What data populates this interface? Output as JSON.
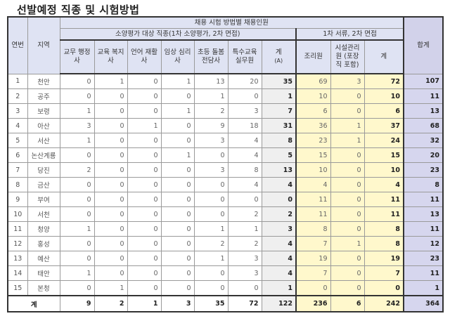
{
  "title": "선발예정 직종 및 시험방법",
  "header": {
    "seq": "연번",
    "region": "지역",
    "top_group": "채용 시험 방법별 채용인원",
    "group_a": "소양평가 대상 직종(1차 소양평가, 2차 면접)",
    "group_b": "1차 서류, 2차 면접",
    "total": "합계",
    "cols_a": [
      "교무 행정사",
      "교육 복지사",
      "언어 재활사",
      "임상 심리사",
      "초등 돌봄 전담사",
      "특수교육 실무원"
    ],
    "sum_a": "계",
    "sum_a_sub": "(A)",
    "cols_b": [
      "조리원",
      "시설관리원 (포장직 포함)"
    ],
    "sum_b": "계"
  },
  "rows": [
    {
      "no": "1",
      "region": "천안",
      "a": [
        "0",
        "1",
        "0",
        "1",
        "13",
        "20"
      ],
      "sum_a": "35",
      "b": [
        "69",
        "3"
      ],
      "sum_b": "72",
      "total": "107"
    },
    {
      "no": "2",
      "region": "공주",
      "a": [
        "0",
        "0",
        "0",
        "0",
        "1",
        "0"
      ],
      "sum_a": "1",
      "b": [
        "10",
        "0"
      ],
      "sum_b": "10",
      "total": "11"
    },
    {
      "no": "3",
      "region": "보령",
      "a": [
        "1",
        "0",
        "0",
        "1",
        "2",
        "3"
      ],
      "sum_a": "7",
      "b": [
        "6",
        "0"
      ],
      "sum_b": "6",
      "total": "13"
    },
    {
      "no": "4",
      "region": "아산",
      "a": [
        "3",
        "0",
        "1",
        "0",
        "9",
        "18"
      ],
      "sum_a": "31",
      "b": [
        "36",
        "1"
      ],
      "sum_b": "37",
      "total": "68"
    },
    {
      "no": "5",
      "region": "서산",
      "a": [
        "1",
        "0",
        "0",
        "0",
        "3",
        "4"
      ],
      "sum_a": "8",
      "b": [
        "23",
        "1"
      ],
      "sum_b": "24",
      "total": "32"
    },
    {
      "no": "6",
      "region": "논산계룡",
      "a": [
        "0",
        "0",
        "0",
        "1",
        "0",
        "4"
      ],
      "sum_a": "5",
      "b": [
        "15",
        "0"
      ],
      "sum_b": "15",
      "total": "20"
    },
    {
      "no": "7",
      "region": "당진",
      "a": [
        "2",
        "0",
        "0",
        "0",
        "3",
        "8"
      ],
      "sum_a": "13",
      "b": [
        "10",
        "0"
      ],
      "sum_b": "10",
      "total": "23"
    },
    {
      "no": "8",
      "region": "금산",
      "a": [
        "0",
        "0",
        "0",
        "0",
        "0",
        "4"
      ],
      "sum_a": "4",
      "b": [
        "4",
        "0"
      ],
      "sum_b": "4",
      "total": "8"
    },
    {
      "no": "9",
      "region": "부여",
      "a": [
        "0",
        "0",
        "0",
        "0",
        "0",
        "0"
      ],
      "sum_a": "0",
      "b": [
        "11",
        "0"
      ],
      "sum_b": "11",
      "total": "11"
    },
    {
      "no": "10",
      "region": "서천",
      "a": [
        "0",
        "0",
        "0",
        "0",
        "0",
        "2"
      ],
      "sum_a": "2",
      "b": [
        "11",
        "0"
      ],
      "sum_b": "11",
      "total": "13"
    },
    {
      "no": "11",
      "region": "청양",
      "a": [
        "1",
        "0",
        "0",
        "0",
        "1",
        "1"
      ],
      "sum_a": "3",
      "b": [
        "8",
        "0"
      ],
      "sum_b": "8",
      "total": "11"
    },
    {
      "no": "12",
      "region": "홍성",
      "a": [
        "0",
        "0",
        "0",
        "0",
        "2",
        "2"
      ],
      "sum_a": "4",
      "b": [
        "7",
        "1"
      ],
      "sum_b": "8",
      "total": "12"
    },
    {
      "no": "13",
      "region": "예산",
      "a": [
        "0",
        "0",
        "0",
        "0",
        "1",
        "3"
      ],
      "sum_a": "4",
      "b": [
        "19",
        "0"
      ],
      "sum_b": "19",
      "total": "23"
    },
    {
      "no": "14",
      "region": "태안",
      "a": [
        "1",
        "0",
        "0",
        "0",
        "0",
        "3"
      ],
      "sum_a": "4",
      "b": [
        "7",
        "0"
      ],
      "sum_b": "7",
      "total": "11"
    },
    {
      "no": "15",
      "region": "본청",
      "a": [
        "0",
        "1",
        "0",
        "0",
        "0",
        "0"
      ],
      "sum_a": "1",
      "b": [
        "0",
        "0"
      ],
      "sum_b": "0",
      "total": "1"
    }
  ],
  "totals": {
    "label": "계",
    "a": [
      "9",
      "2",
      "1",
      "3",
      "35",
      "72"
    ],
    "sum_a": "122",
    "b": [
      "236",
      "6"
    ],
    "sum_b": "242",
    "total": "364"
  }
}
